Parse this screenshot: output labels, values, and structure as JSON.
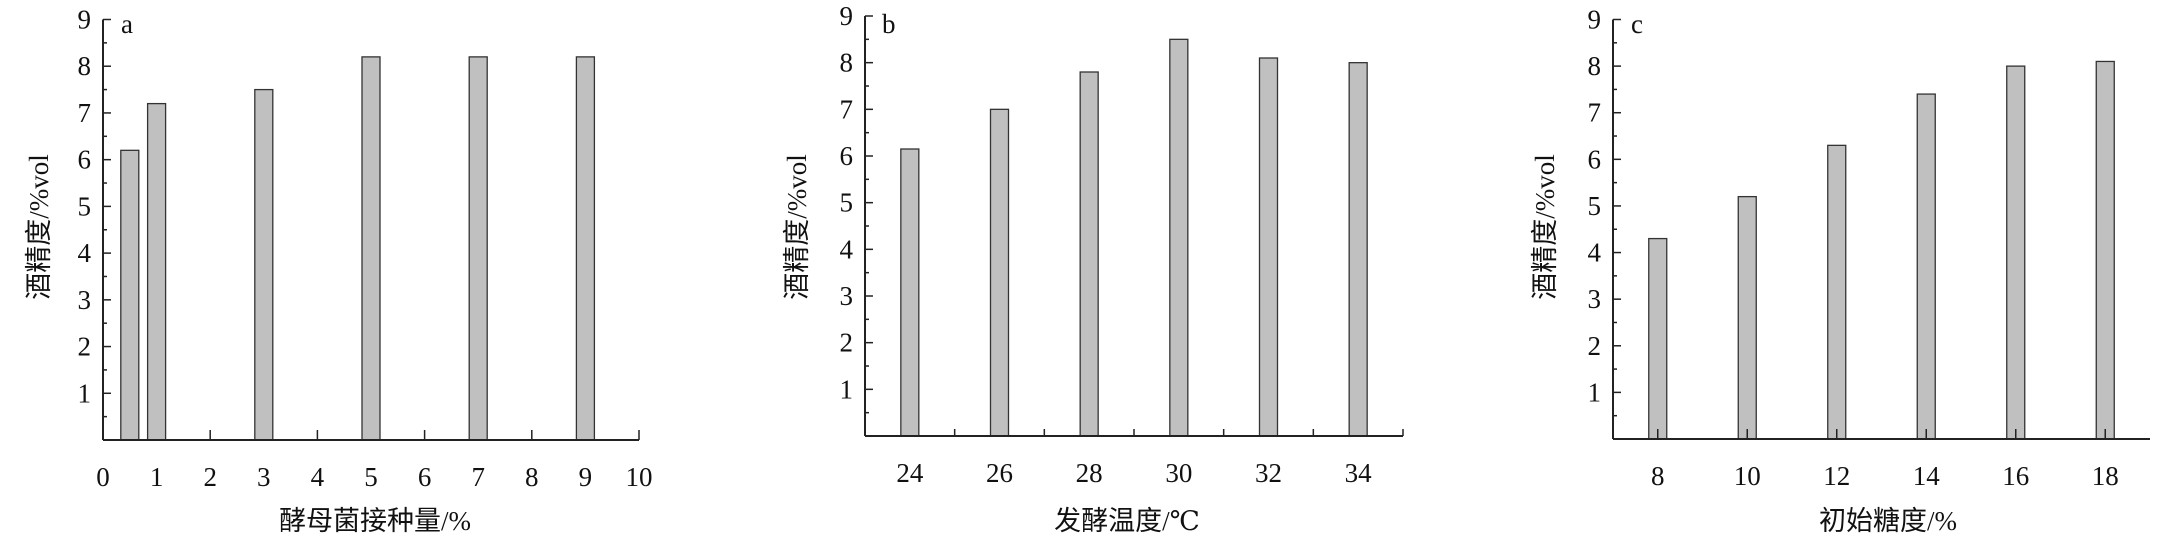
{
  "chart_data": [
    {
      "type": "bar",
      "panel_label": "a",
      "x_axis": "linear",
      "x": [
        0.5,
        1,
        3,
        5,
        7,
        9
      ],
      "values": [
        6.2,
        7.2,
        7.5,
        8.2,
        8.2,
        8.2
      ],
      "xlim": [
        0,
        10
      ],
      "xticks": [
        "0",
        "1",
        "2",
        "3",
        "4",
        "5",
        "6",
        "7",
        "8",
        "9",
        "10"
      ],
      "ylim": [
        0,
        9
      ],
      "yticks": [
        "1",
        "2",
        "3",
        "4",
        "5",
        "6",
        "7",
        "8",
        "9"
      ],
      "xlabel": "酵母菌接种量/%",
      "ylabel": "酒精度/%vol",
      "grid": false,
      "bar_color": "#c0c0c0"
    },
    {
      "type": "bar",
      "panel_label": "b",
      "x_axis": "categorical",
      "categories": [
        "24",
        "26",
        "28",
        "30",
        "32",
        "34"
      ],
      "values": [
        6.15,
        7.0,
        7.8,
        8.5,
        8.1,
        8.0
      ],
      "ylim": [
        0,
        9
      ],
      "yticks": [
        "1",
        "2",
        "3",
        "4",
        "5",
        "6",
        "7",
        "8",
        "9"
      ],
      "xlabel": "发酵温度/℃",
      "ylabel": "酒精度/%vol",
      "grid": false,
      "bar_color": "#c0c0c0"
    },
    {
      "type": "bar",
      "panel_label": "c",
      "x_axis": "categorical",
      "categories": [
        "8",
        "10",
        "12",
        "14",
        "16",
        "18"
      ],
      "values": [
        4.3,
        5.2,
        6.3,
        7.4,
        8.0,
        8.1
      ],
      "ylim": [
        0,
        9
      ],
      "yticks": [
        "1",
        "2",
        "3",
        "4",
        "5",
        "6",
        "7",
        "8",
        "9"
      ],
      "xlabel": "初始糖度/%",
      "ylabel": "酒精度/%vol",
      "grid": false,
      "bar_color": "#c0c0c0"
    }
  ]
}
